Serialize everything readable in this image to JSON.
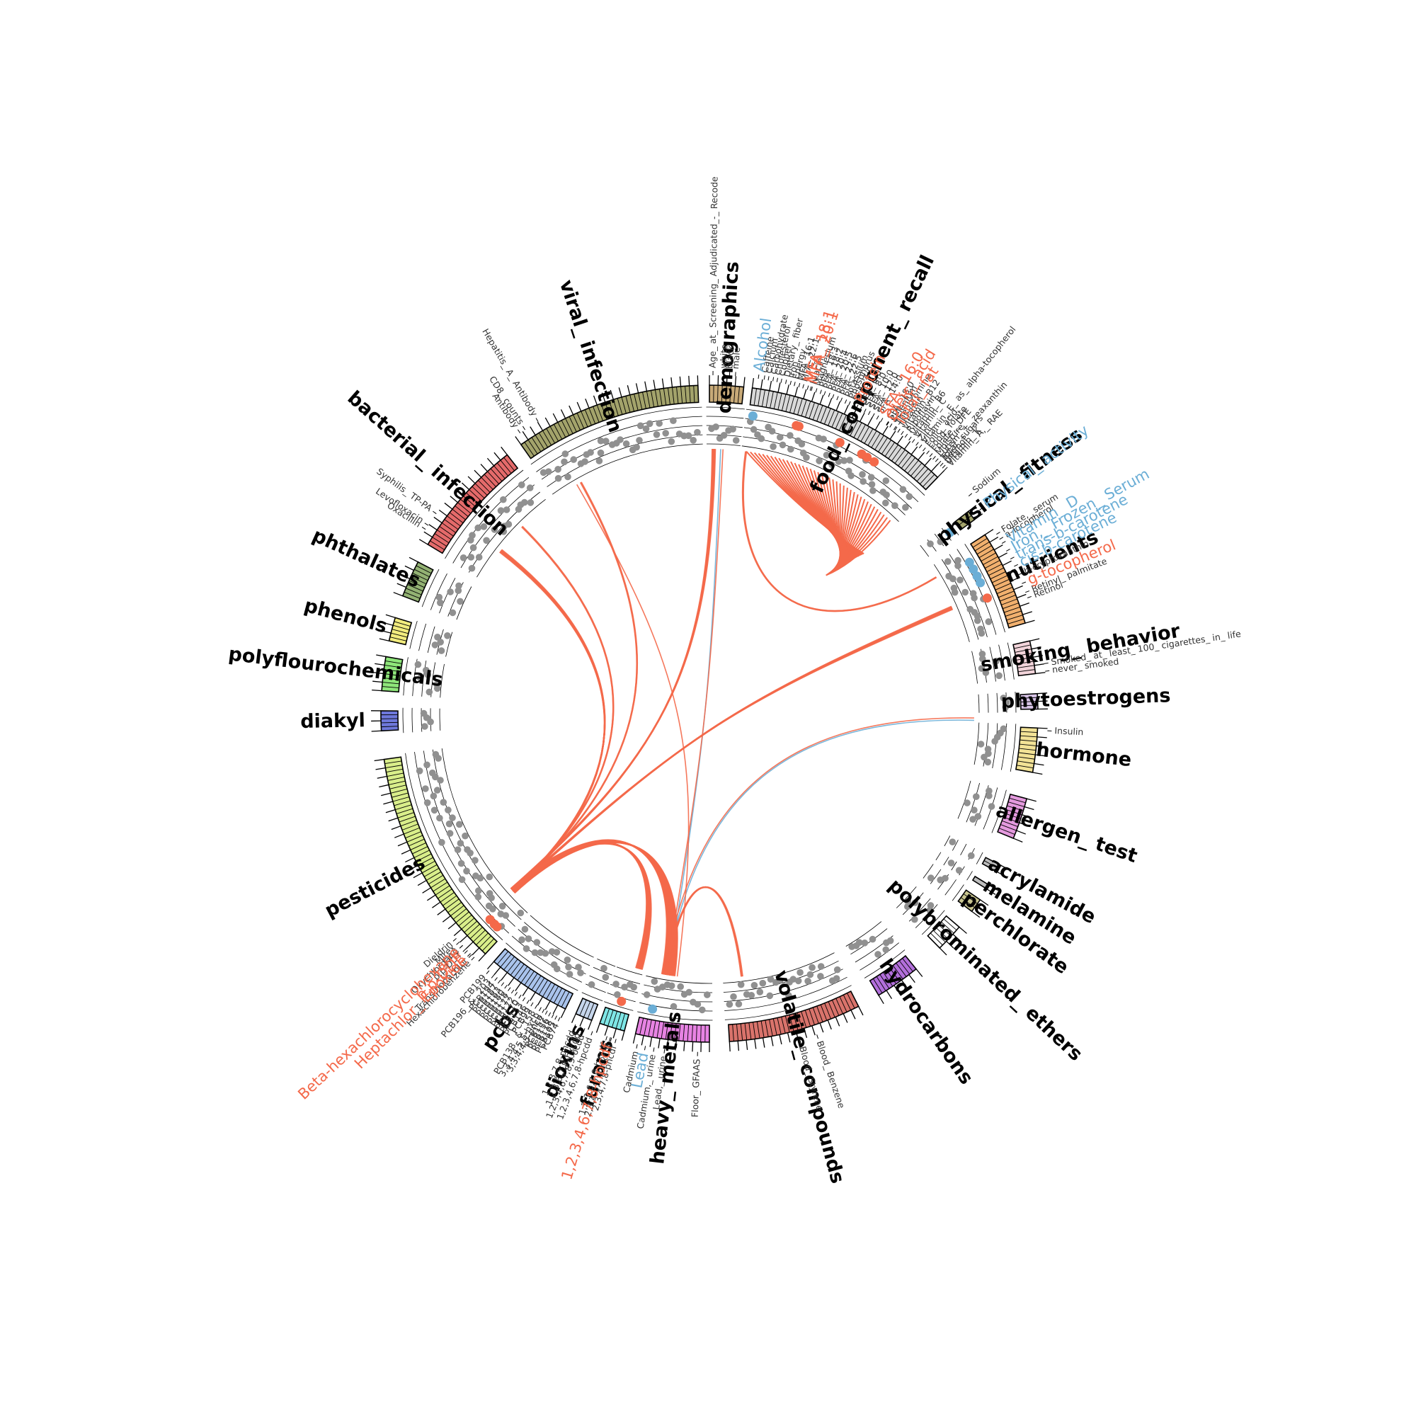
{
  "diagram": {
    "type": "circos",
    "colors": {
      "positive": "#f4694a",
      "negative": "#6baed6",
      "point": "#909090"
    },
    "categories": [
      {
        "name": "demographics",
        "color": "#c8aa78",
        "start": 360.0,
        "end": 366.0
      },
      {
        "name": "food_ component_ recall",
        "color": "#d9d9d9",
        "start": 367.5,
        "end": 404.0
      },
      {
        "name": "physical_ fitness",
        "color": "#a3a36b",
        "start": 412.0,
        "end": 413.8
      },
      {
        "name": "nutrients",
        "color": "#f1b06e",
        "start": 417.0,
        "end": 434.0
      },
      {
        "name": "smoking_ behavior",
        "color": "#f2d4da",
        "start": 437.2,
        "end": 443.0
      },
      {
        "name": "phytoestrogens",
        "color": "#d9c5e8",
        "start": 446.5,
        "end": 449.2
      },
      {
        "name": "hormone",
        "color": "#f2e296",
        "start": 452.5,
        "end": 460.3
      },
      {
        "name": "allergen_ test",
        "color": "#e49ade",
        "start": 465.0,
        "end": 472.3
      },
      {
        "name": "acrylamide",
        "color": "#bdbdbd",
        "start": 477.5,
        "end": 478.8
      },
      {
        "name": "melamine",
        "color": "#bdbdbd",
        "start": 481.5,
        "end": 482.3
      },
      {
        "name": "perchlorate",
        "color": "#c8c590",
        "start": 484.5,
        "end": 487.0
      },
      {
        "name": "polybrominated_ ethers",
        "color": "#ffffff",
        "start": 490.5,
        "end": 495.5
      },
      {
        "name": "hydrocarbons",
        "color": "#b26fdb",
        "start": 501.0,
        "end": 509.0
      },
      {
        "name": "volatile_ compounds",
        "color": "#d9736b",
        "start": 513.0,
        "end": 536.5
      },
      {
        "name": "heavy_ metals",
        "color": "#e783e3",
        "start": 540.0,
        "end": 553.0
      },
      {
        "name": "furans",
        "color": "#7fe6e6",
        "start": 555.0,
        "end": 559.5
      },
      {
        "name": "dioxins",
        "color": "#c6d6ec",
        "start": 561.0,
        "end": 564.0
      },
      {
        "name": "pcbs",
        "color": "#a9c3ec",
        "start": 566.0,
        "end": 581.0
      },
      {
        "name": "pesticides",
        "color": "#d9ee8a",
        "start": 583.0,
        "end": 622.0
      },
      {
        "name": "diakyl",
        "color": "#6e78db",
        "start": 627.0,
        "end": 630.5
      },
      {
        "name": "polyflourochemicals",
        "color": "#8ee67a",
        "start": 634.0,
        "end": 640.0
      },
      {
        "name": "phenols",
        "color": "#f2ec7e",
        "start": 642.8,
        "end": 647.0
      },
      {
        "name": "phthalates",
        "color": "#93b273",
        "start": 651.0,
        "end": 657.5
      },
      {
        "name": "bacterial_ infection",
        "color": "#e46a6a",
        "start": 661.0,
        "end": 682.0
      },
      {
        "name": "viral_ infection",
        "color": "#a3a36b",
        "start": 685.0,
        "end": 718.0
      }
    ],
    "variable_labels": [
      {
        "text": "Age_ at_ Screening_ Adjudicated_-_ Recode",
        "angle": 360.6
      },
      {
        "text": "white",
        "angle": 362.4
      },
      {
        "text": "black",
        "angle": 363.4
      },
      {
        "text": "male",
        "angle": 364.4
      },
      {
        "text": "Caffeine",
        "angle": 369.3
      },
      {
        "text": "Calcium",
        "angle": 370.0
      },
      {
        "text": "Carbohydrate",
        "angle": 370.8
      },
      {
        "text": "Cholesterol",
        "angle": 371.5
      },
      {
        "text": "Copper",
        "angle": 372.2
      },
      {
        "text": "Dietary_ fiber",
        "angle": 373.0
      },
      {
        "text": "Iron",
        "angle": 373.8
      },
      {
        "text": "Energy",
        "angle": 374.5
      },
      {
        "text": "MFA_ 16:1",
        "angle": 375.3
      },
      {
        "text": "MFA_ 22:1",
        "angle": 376.0
      },
      {
        "text": "Niacin",
        "angle": 377.5
      },
      {
        "text": "Magnesium",
        "angle": 378.3
      },
      {
        "text": "PFA_ 18:3",
        "angle": 379.1
      },
      {
        "text": "PFA_ 18:2",
        "angle": 379.8
      },
      {
        "text": "PFA_ 20:4",
        "angle": 380.6
      },
      {
        "text": "PFA_ 20:5",
        "angle": 381.3
      },
      {
        "text": "PFA_ 22:6",
        "angle": 382.1
      },
      {
        "text": "PFA_ 22:5",
        "angle": 382.8
      },
      {
        "text": "Potassium",
        "angle": 383.6
      },
      {
        "text": "Phosphorus",
        "angle": 384.3
      },
      {
        "text": "SFA_ 4:0",
        "angle": 385.1
      },
      {
        "text": "SFA_ 6:0",
        "angle": 386.4
      },
      {
        "text": "SFA_ 8:0",
        "angle": 387.2
      },
      {
        "text": "SFA_ 10:0",
        "angle": 388.0
      },
      {
        "text": "SFA_ 12:0",
        "angle": 388.8
      },
      {
        "text": "SFA_ 14:0",
        "angle": 389.6
      },
      {
        "text": "SFA_ 18:0",
        "angle": 391.5
      },
      {
        "text": "Selenium",
        "angle": 392.2
      },
      {
        "text": "Theobromine",
        "angle": 393.0
      },
      {
        "text": "Thiamin",
        "angle": 393.8
      },
      {
        "text": "Vitamin_ B12",
        "angle": 394.5
      },
      {
        "text": "Riboflavin",
        "angle": 395.3
      },
      {
        "text": "Vitamin_ B6",
        "angle": 396.1
      },
      {
        "text": "Vitamin_ C",
        "angle": 396.8
      },
      {
        "text": "Zinc",
        "angle": 397.6
      },
      {
        "text": "Vitamin_ E_ as_ alpha-tocopherol",
        "angle": 398.3
      },
      {
        "text": "Folic_ acid",
        "angle": 399.1
      },
      {
        "text": "Food_ folate",
        "angle": 399.9
      },
      {
        "text": "Folate,_ DFE",
        "angle": 400.6
      },
      {
        "text": "Moisture",
        "angle": 401.3
      },
      {
        "text": "Lutein_ +_ zeaxanthin",
        "angle": 401.9
      },
      {
        "text": "Total_ sugars",
        "angle": 402.5
      },
      {
        "text": "Retinol",
        "angle": 403.0
      },
      {
        "text": "Vitamin_ K",
        "angle": 403.5
      },
      {
        "text": "Vitamin_ A,_ RAE",
        "angle": 404.0
      },
      {
        "text": "Sodium",
        "angle": 410.0
      },
      {
        "text": "Folate,_ serum",
        "angle": 418.0
      },
      {
        "text": "a-Tocopherol",
        "angle": 419.0
      },
      {
        "text": "b-cryptoxanthin",
        "angle": 425.8
      },
      {
        "text": "Retinyl_ palmitate",
        "angle": 429.0
      },
      {
        "text": "Retinol",
        "angle": 430.0
      },
      {
        "text": "Smoked_ at_ least_ 100_ cigarettes_ in_ life",
        "angle": 441.5
      },
      {
        "text": "never_ smoked",
        "angle": 442.8
      },
      {
        "text": "Insulin",
        "angle": 452.9
      },
      {
        "text": "Blood_ Benzene",
        "angle": 521.5
      },
      {
        "text": "Blood_ Styrene",
        "angle": 524.5
      },
      {
        "text": "Floor_ GFAAS",
        "angle": 542.0
      },
      {
        "text": "Lead,_ urine",
        "angle": 547.6
      },
      {
        "text": "Cadmium,_ urine",
        "angle": 549.4
      },
      {
        "text": "Cadmium",
        "angle": 552.3
      },
      {
        "text": "2,3,4,7,8-pncdf",
        "angle": 556.0
      },
      {
        "text": "2,3,4,6,7,8-hxcdf",
        "angle": 556.8
      },
      {
        "text": "1,2,3,6,7,8-hxcdf",
        "angle": 557.6
      },
      {
        "text": "1,2,3,4,6,7,8-hpcdd",
        "angle": 560.2
      },
      {
        "text": "1,2,3,4,6,7,8,9-ocdd",
        "angle": 561.6
      },
      {
        "text": "1,2,3,6,7,8-hxcdd",
        "angle": 562.3
      },
      {
        "text": "1,2,3,7,8-pncdd",
        "angle": 563.3
      },
      {
        "text": "PCB74",
        "angle": 566.2
      },
      {
        "text": "PCB105",
        "angle": 566.8
      },
      {
        "text": "PCB118",
        "angle": 567.4
      },
      {
        "text": "PCB156",
        "angle": 568.0
      },
      {
        "text": "PCB157",
        "angle": 568.6
      },
      {
        "text": "3,3,4,4,5-pncb",
        "angle": 569.2
      },
      {
        "text": "3,3,4,4,5,5-hxcb",
        "angle": 569.8
      },
      {
        "text": "PCB138_ &_ 158",
        "angle": 570.6
      },
      {
        "text": "PCB99",
        "angle": 571.4
      },
      {
        "text": "PCB146",
        "angle": 572.2
      },
      {
        "text": "PCB153",
        "angle": 573.0
      },
      {
        "text": "PCB170",
        "angle": 573.8
      },
      {
        "text": "PCB172",
        "angle": 574.6
      },
      {
        "text": "PCB177",
        "angle": 575.3
      },
      {
        "text": "PCB178",
        "angle": 576.0
      },
      {
        "text": "PCB180",
        "angle": 576.7
      },
      {
        "text": "PCB183",
        "angle": 577.4
      },
      {
        "text": "PCB187",
        "angle": 578.1
      },
      {
        "text": "PCB194",
        "angle": 578.8
      },
      {
        "text": "PCB196_ &_ 203",
        "angle": 579.5
      },
      {
        "text": "PCB199",
        "angle": 580.6
      },
      {
        "text": "Hexachlorobenzene",
        "angle": 584.0
      },
      {
        "text": "Trans-nonachlor",
        "angle": 584.6
      },
      {
        "text": "p,p-DDT",
        "angle": 586.0
      },
      {
        "text": "Oxychlordane",
        "angle": 586.8
      },
      {
        "text": "Mirex",
        "angle": 587.6
      },
      {
        "text": "Dieldrin",
        "angle": 588.4
      },
      {
        "text": "Oxacillin",
        "angle": 663.0
      },
      {
        "text": "Levofloxacin",
        "angle": 663.8
      },
      {
        "text": "Syphilis_ TP-PA",
        "angle": 666.2
      },
      {
        "text": "Antibody",
        "angle": 686.0
      },
      {
        "text": "CD8_ counts",
        "angle": 687.0
      },
      {
        "text": "Hepatitis_ A_ Antibody",
        "angle": 689.6
      }
    ],
    "highlight_labels": [
      {
        "text": "Alcohol",
        "angle": 368.3,
        "sign": "negative"
      },
      {
        "text": "MFA_ 18:1",
        "angle": 376.8,
        "sign": "positive"
      },
      {
        "text": "MFA_ 20:1",
        "angle": 377.3,
        "sign": "positive"
      },
      {
        "text": "Protein",
        "angle": 385.7,
        "sign": "positive"
      },
      {
        "text": "SFA_ 16:0",
        "angle": 390.4,
        "sign": "positive"
      },
      {
        "text": "Total_ fat",
        "angle": 393.2,
        "sign": "positive"
      },
      {
        "text": "Oleic_ acid",
        "angle": 391.6,
        "sign": "positive"
      },
      {
        "text": "Physical_ activity",
        "angle": 413.0,
        "sign": "negative"
      },
      {
        "text": "Vitamin_ D",
        "angle": 419.8,
        "sign": "negative"
      },
      {
        "text": "Iron,_ Frozen_ Serum",
        "angle": 421.3,
        "sign": "negative"
      },
      {
        "text": "trans-b-carotene",
        "angle": 422.8,
        "sign": "negative"
      },
      {
        "text": "cis-b-carotene",
        "angle": 424.2,
        "sign": "negative"
      },
      {
        "text": "g-tocopherol",
        "angle": 427.4,
        "sign": "positive"
      },
      {
        "text": "Lead",
        "angle": 550.9,
        "sign": "negative"
      },
      {
        "text": "1,2,3,4,6,7,8-hpcdf",
        "angle": 557.0,
        "sign": "positive"
      },
      {
        "text": "Heptachlor_ Epoxide",
        "angle": 584.9,
        "sign": "positive"
      },
      {
        "text": "p,p-DDE",
        "angle": 585.6,
        "sign": "positive"
      },
      {
        "text": "Beta-hexachlorocyclohexane",
        "angle": 586.8,
        "sign": "positive"
      }
    ],
    "links": [
      {
        "from": 361,
        "to": 588.5,
        "sign": "positive",
        "count": 6
      },
      {
        "from": 362.5,
        "to": 549,
        "sign": "negative",
        "count": 1
      },
      {
        "from": 363,
        "to": 549.5,
        "sign": "positive",
        "count": 1
      },
      {
        "from": 368,
        "to": 419,
        "sign": "positive",
        "count": 2
      },
      {
        "from": 426.5,
        "to": 588,
        "sign": "positive",
        "count": 6
      },
      {
        "from": 451.5,
        "to": 549.5,
        "sign": "negative",
        "count": 1
      },
      {
        "from": 451,
        "to": 550,
        "sign": "positive",
        "count": 1
      },
      {
        "from": 690,
        "to": 547,
        "sign": "positive",
        "count": 1
      },
      {
        "from": 691,
        "to": 588,
        "sign": "positive",
        "count": 2
      },
      {
        "from": 675,
        "to": 588,
        "sign": "positive",
        "count": 2
      },
      {
        "from": 668,
        "to": 588,
        "sign": "positive",
        "count": 6
      },
      {
        "from": 549,
        "to": 588,
        "sign": "positive",
        "count": 24
      },
      {
        "from": 555.5,
        "to": 588,
        "sign": "positive",
        "count": 12
      },
      {
        "from": 533,
        "to": 549.5,
        "sign": "positive",
        "count": 3
      }
    ]
  }
}
